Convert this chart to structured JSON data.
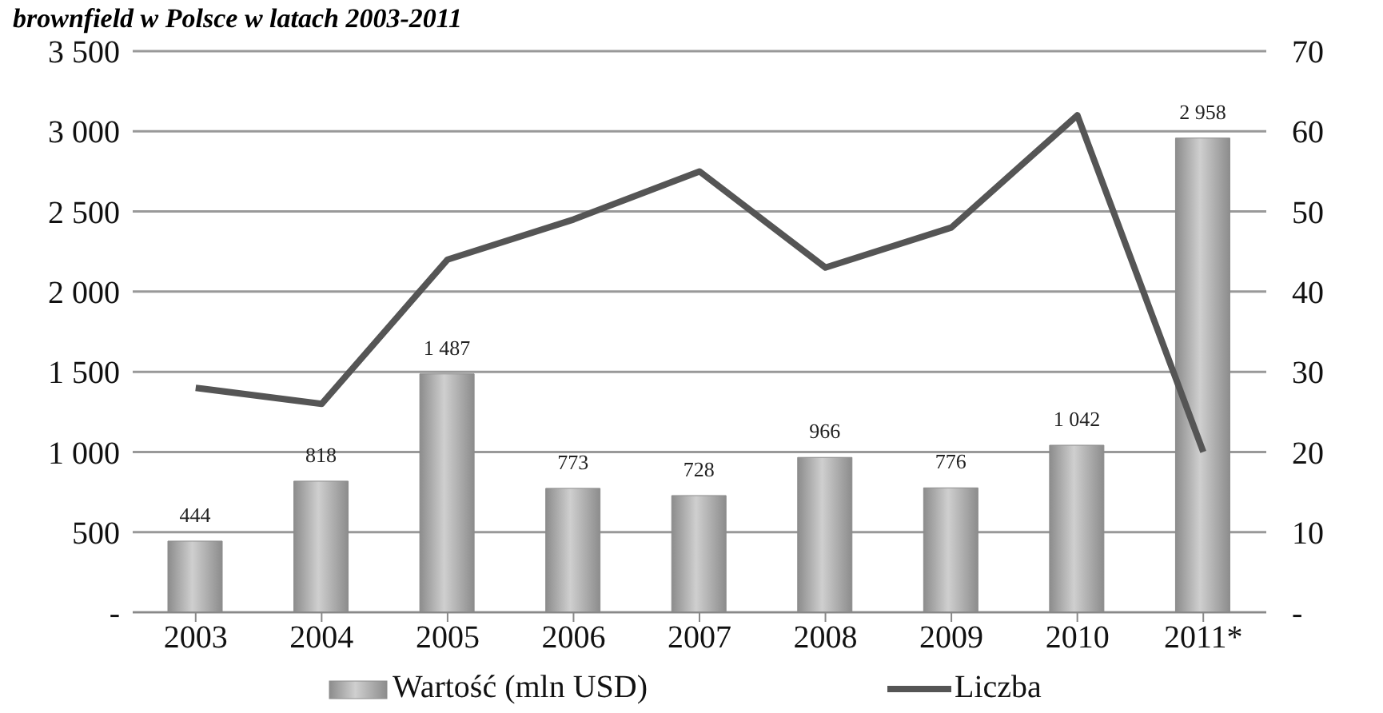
{
  "chart_data": {
    "type": "bar",
    "title": "brownfield w Polsce w latach 2003-2011",
    "categories": [
      "2003",
      "2004",
      "2005",
      "2006",
      "2007",
      "2008",
      "2009",
      "2010",
      "2011*"
    ],
    "series": [
      {
        "name": "Wartość (mln USD)",
        "color": "#8c8c8c",
        "values": [
          444,
          818,
          1487,
          773,
          728,
          966,
          776,
          1042,
          2958
        ],
        "value_labels": [
          "444",
          "818",
          "1 487",
          "773",
          "728",
          "966",
          "776",
          "1 042",
          "2 958"
        ]
      },
      {
        "name": "Liczba",
        "type": "line",
        "axis": "y2",
        "color": "#555555",
        "values": [
          28,
          26,
          44,
          49,
          55,
          43,
          48,
          62,
          20
        ]
      }
    ],
    "ylim": [
      0,
      3500
    ],
    "yticks": [
      {
        "value": 0,
        "label": "-"
      },
      {
        "value": 500,
        "label": "500"
      },
      {
        "value": 1000,
        "label": "1 000"
      },
      {
        "value": 1500,
        "label": "1 500"
      },
      {
        "value": 2000,
        "label": "2 000"
      },
      {
        "value": 2500,
        "label": "2 500"
      },
      {
        "value": 3000,
        "label": "3 000"
      },
      {
        "value": 3500,
        "label": "3 500"
      }
    ],
    "y2lim": [
      0,
      70
    ],
    "y2ticks": [
      {
        "value": 0,
        "label": "-"
      },
      10,
      20,
      30,
      40,
      50,
      60,
      70
    ],
    "grid": "y",
    "legend": "bottom",
    "marker": "none",
    "line_style": "solid"
  }
}
